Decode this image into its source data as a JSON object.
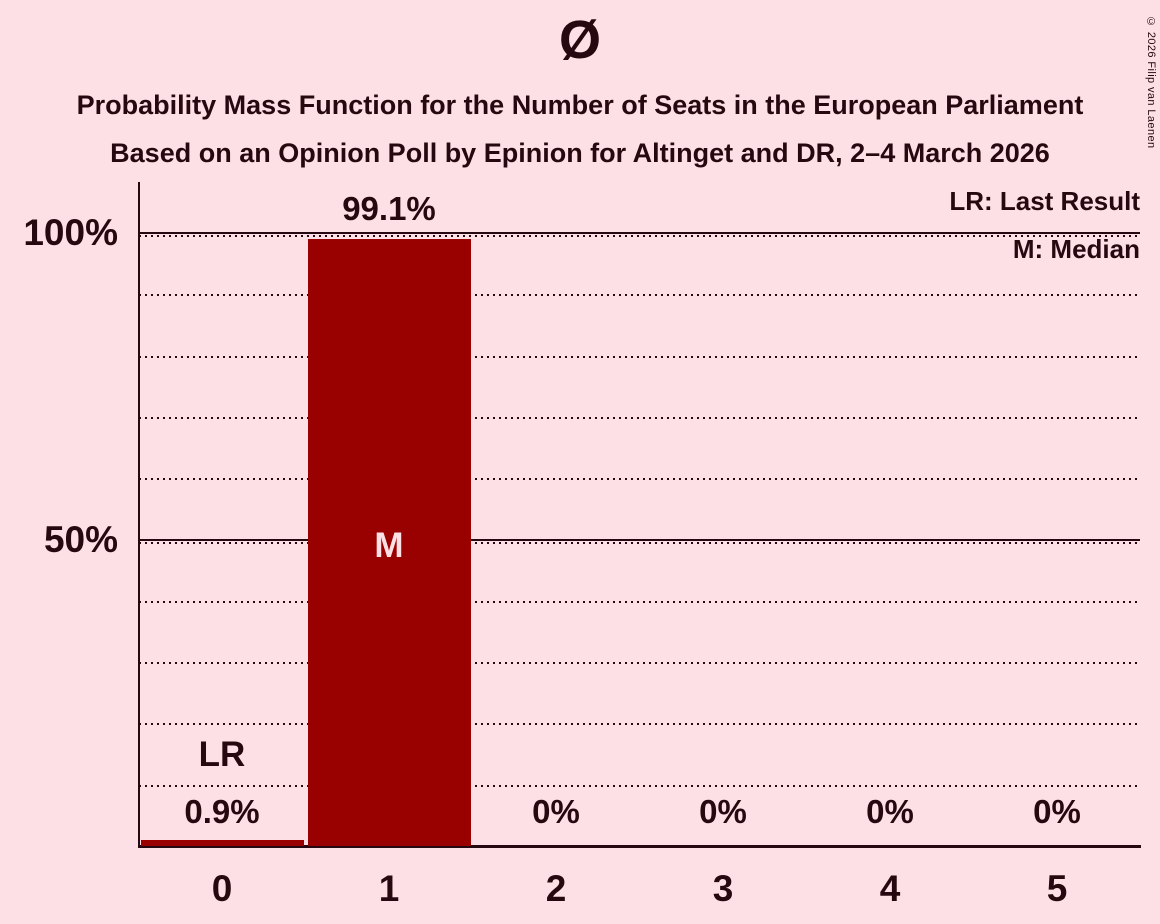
{
  "copyright": "© 2026 Filip van Laenen",
  "chart_data": {
    "type": "bar",
    "title": "Ø",
    "subtitle": "Probability Mass Function for the Number of Seats in the European Parliament",
    "subsubtitle": "Based on an Opinion Poll by Epinion for Altinget and DR, 2–4 March 2026",
    "xlabel": "",
    "ylabel": "",
    "categories": [
      "0",
      "1",
      "2",
      "3",
      "4",
      "5"
    ],
    "values": [
      0.9,
      99.1,
      0,
      0,
      0,
      0
    ],
    "value_labels": [
      "0.9%",
      "99.1%",
      "0%",
      "0%",
      "0%",
      "0%"
    ],
    "annotations": [
      {
        "category": "0",
        "text": "LR",
        "meaning": "Last Result"
      },
      {
        "category": "1",
        "text": "M",
        "meaning": "Median"
      }
    ],
    "legend": [
      {
        "label": "LR: Last Result"
      },
      {
        "label": "M: Median"
      }
    ],
    "y_ticks": [
      {
        "value": 100,
        "label": "100%"
      },
      {
        "value": 50,
        "label": "50%"
      }
    ],
    "ylim": [
      0,
      100
    ],
    "grid_step_percent": 10,
    "grid": "dotted, solid at 50% and 100%",
    "legend_position": "top-right",
    "colors": {
      "background": "#FDE0E5",
      "bar": "#990000",
      "ink": "#260910",
      "median_label_on_bar": "#FDE0E5"
    }
  }
}
